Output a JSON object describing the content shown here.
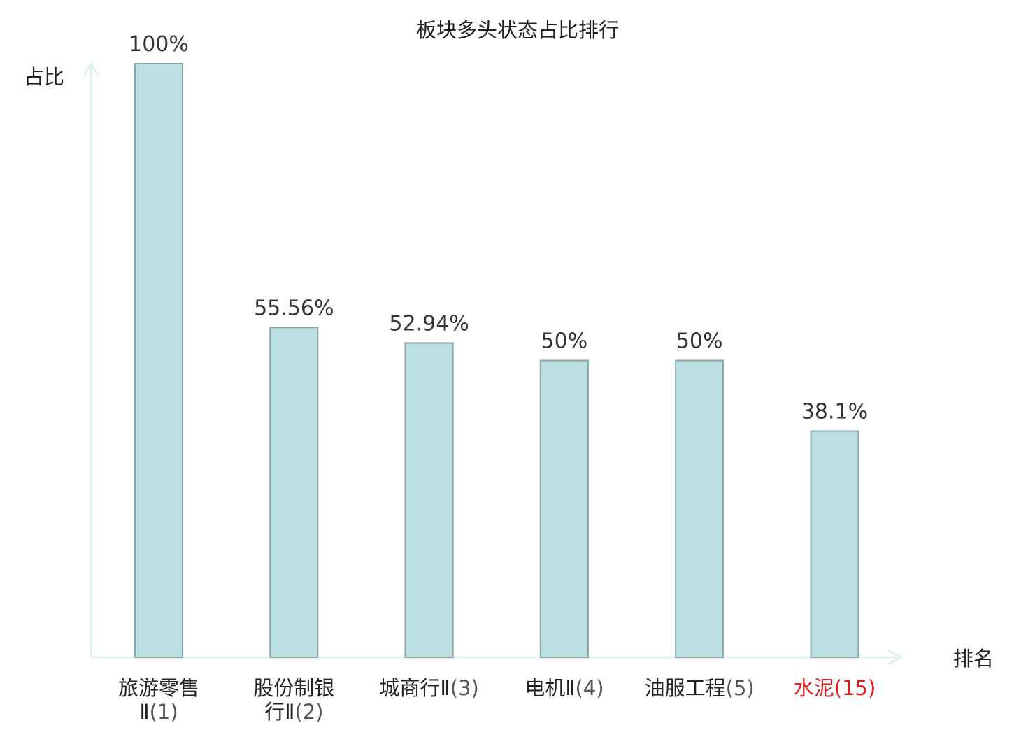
{
  "chart_data": {
    "type": "bar",
    "title": "板块多头状态占比排行",
    "ylabel": "占比",
    "xlabel": "排名",
    "ylim": [
      0,
      100
    ],
    "grid": false,
    "categories": [
      {
        "name_lines": [
          "旅游零售",
          "Ⅱ"
        ],
        "rank": "(1)",
        "highlight": false
      },
      {
        "name_lines": [
          "股份制银",
          "行Ⅱ"
        ],
        "rank": "(2)",
        "highlight": false
      },
      {
        "name_lines": [
          "城商行Ⅱ"
        ],
        "rank": "(3)",
        "highlight": false
      },
      {
        "name_lines": [
          "电机Ⅱ"
        ],
        "rank": "(4)",
        "highlight": false
      },
      {
        "name_lines": [
          "油服工程"
        ],
        "rank": "(5)",
        "highlight": false
      },
      {
        "name_lines": [
          "水泥"
        ],
        "rank": "(15)",
        "highlight": true
      }
    ],
    "values": [
      100,
      55.56,
      52.94,
      50,
      50,
      38.1
    ],
    "value_labels": [
      "100%",
      "55.56%",
      "52.94%",
      "50%",
      "50%",
      "38.1%"
    ]
  },
  "colors": {
    "bar_fill": "#bce0e2",
    "bar_stroke": "#86a5a8",
    "axis": "#e0f2ef",
    "text": "#222222",
    "value_text": "#333333",
    "rank_text": "#555555",
    "highlight": "#e11c1c"
  }
}
